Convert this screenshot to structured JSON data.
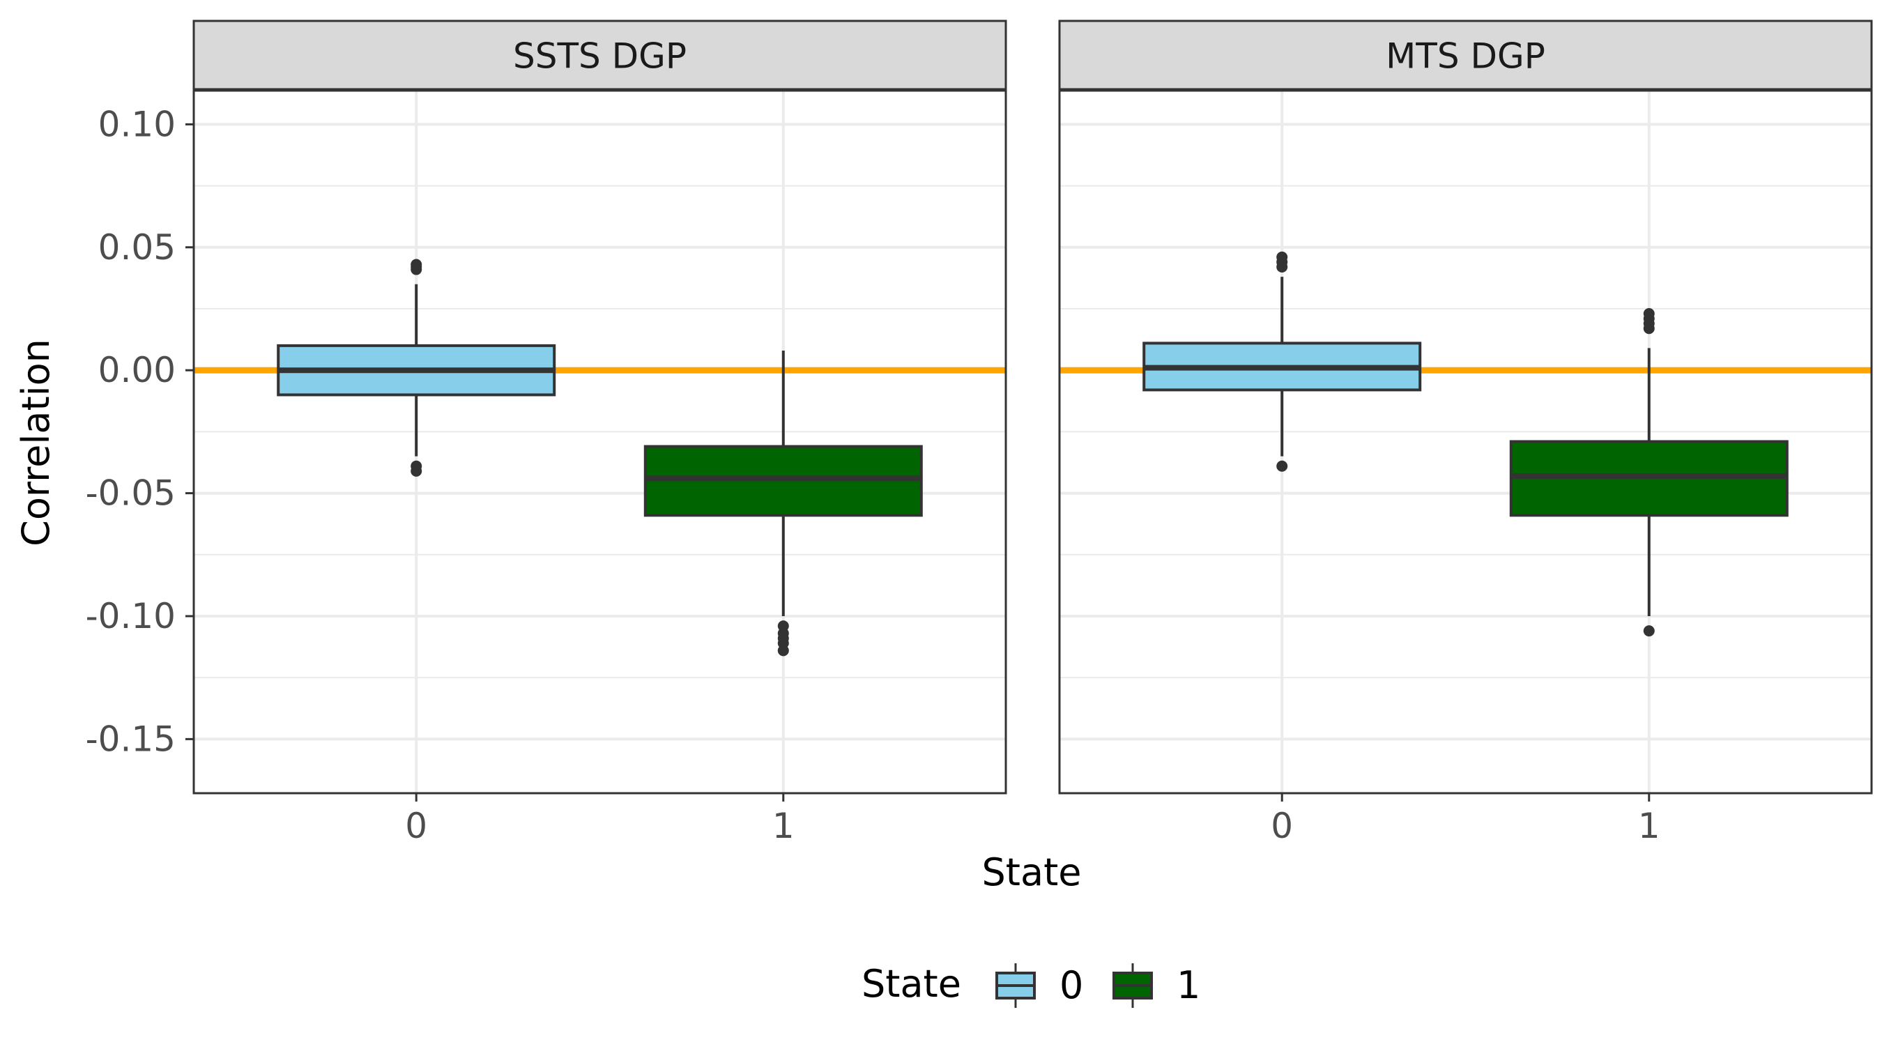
{
  "chart_data": {
    "type": "boxplot",
    "facets": [
      {
        "title": "SSTS DGP",
        "boxes": [
          {
            "category": "0",
            "fill": "#87CEEB",
            "lower_whisker": -0.035,
            "q1": -0.01,
            "median": 0.0,
            "q3": 0.01,
            "upper_whisker": 0.035,
            "outliers": [
              0.041,
              0.042,
              0.043,
              -0.039,
              -0.041
            ]
          },
          {
            "category": "1",
            "fill": "#006400",
            "lower_whisker": -0.1,
            "q1": -0.059,
            "median": -0.044,
            "q3": -0.031,
            "upper_whisker": 0.008,
            "outliers": [
              -0.104,
              -0.107,
              -0.109,
              -0.111,
              -0.114
            ]
          }
        ]
      },
      {
        "title": "MTS DGP",
        "boxes": [
          {
            "category": "0",
            "fill": "#87CEEB",
            "lower_whisker": -0.035,
            "q1": -0.008,
            "median": 0.001,
            "q3": 0.011,
            "upper_whisker": 0.038,
            "outliers": [
              0.042,
              0.044,
              0.046,
              -0.039
            ]
          },
          {
            "category": "1",
            "fill": "#006400",
            "lower_whisker": -0.1,
            "q1": -0.059,
            "median": -0.043,
            "q3": -0.029,
            "upper_whisker": 0.009,
            "outliers": [
              0.017,
              0.019,
              0.021,
              0.023,
              -0.106
            ]
          }
        ]
      }
    ],
    "reference_line": {
      "y": 0.0,
      "color": "#FFA500"
    },
    "categories": [
      "0",
      "1"
    ],
    "ylim": [
      -0.172,
      0.114
    ],
    "yticks": [
      "0.10",
      "0.05",
      "0.00",
      "-0.05",
      "-0.10",
      "-0.15"
    ],
    "ytick_values": [
      0.1,
      0.05,
      0.0,
      -0.05,
      -0.1,
      -0.15
    ],
    "yminor_values": [
      0.075,
      0.025,
      -0.025,
      -0.075,
      -0.125
    ],
    "xlabel": "State",
    "ylabel": "Correlation",
    "legend": {
      "title": "State",
      "position": "bottom",
      "entries": [
        {
          "label": "0",
          "color": "#87CEEB"
        },
        {
          "label": "1",
          "color": "#006400"
        }
      ]
    },
    "grid": true,
    "colors": {
      "panel_border": "#333333",
      "strip_fill": "#D9D9D9",
      "grid": "#EBEBEB",
      "box_line": "#333333"
    }
  }
}
